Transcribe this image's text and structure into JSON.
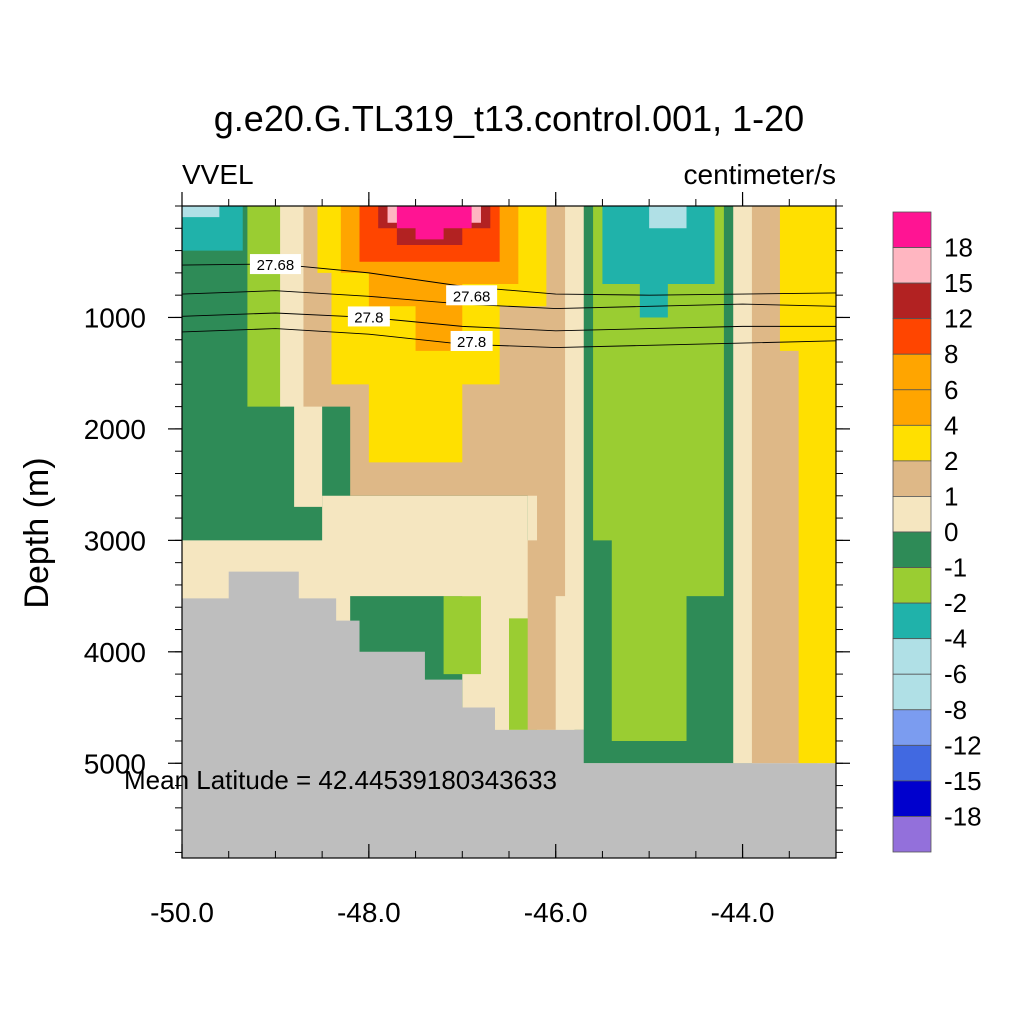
{
  "chart_data": {
    "type": "heatmap",
    "title": "g.e20.G.TL319_t13.control.001, 1-20",
    "left_label": "VVEL",
    "right_label": "centimeter/s",
    "ylabel": "Depth (m)",
    "xlabel": "",
    "xlim": [
      -50.0,
      -43.0
    ],
    "ylim": [
      5850,
      0
    ],
    "x_ticks": [
      -50.0,
      -48.0,
      -46.0,
      -44.0
    ],
    "x_tick_labels": [
      "-50.0",
      "-48.0",
      "-46.0",
      "-44.0"
    ],
    "y_ticks": [
      1000,
      2000,
      3000,
      4000,
      5000
    ],
    "y_tick_labels": [
      "1000",
      "2000",
      "3000",
      "4000",
      "5000"
    ],
    "annotation": "Mean Latitude = 42.44539180343633",
    "legend": {
      "position": "right",
      "labels": [
        "18",
        "15",
        "12",
        "8",
        "6",
        "4",
        "2",
        "1",
        "0",
        "-1",
        "-2",
        "-4",
        "-6",
        "-8",
        "-12",
        "-15",
        "-18"
      ],
      "colors": [
        "#FF1493",
        "#FFB6C1",
        "#B22222",
        "#FF4500",
        "#FFA500",
        "#FFA500",
        "#FFE000",
        "#DEB887",
        "#F5E6C0",
        "#2E8B57",
        "#9ACD32",
        "#20B2AA",
        "#B0E0E6",
        "#B0E0E6",
        "#7B9CF0",
        "#4169E1",
        "#0000CD",
        "#9370DB"
      ]
    },
    "contour_labels": [
      {
        "text": "27.68",
        "x": -49.0,
        "depth": 530
      },
      {
        "text": "27.68",
        "x": -46.9,
        "depth": 810
      },
      {
        "text": "27.8",
        "x": -48.0,
        "depth": 1000
      },
      {
        "text": "27.8",
        "x": -46.9,
        "depth": 1220
      }
    ],
    "contours": [
      [
        [
          -50,
          530
        ],
        [
          -49.0,
          520
        ],
        [
          -48.0,
          600
        ],
        [
          -47.0,
          720
        ],
        [
          -46.0,
          790
        ],
        [
          -45.0,
          800
        ],
        [
          -44.0,
          790
        ],
        [
          -43.0,
          780
        ]
      ],
      [
        [
          -50,
          790
        ],
        [
          -49.0,
          760
        ],
        [
          -48.0,
          810
        ],
        [
          -47.0,
          880
        ],
        [
          -46.0,
          920
        ],
        [
          -45.0,
          900
        ],
        [
          -44.0,
          880
        ],
        [
          -43.0,
          900
        ]
      ],
      [
        [
          -50,
          990
        ],
        [
          -49.0,
          960
        ],
        [
          -48.0,
          1000
        ],
        [
          -47.0,
          1080
        ],
        [
          -46.0,
          1120
        ],
        [
          -45.0,
          1100
        ],
        [
          -44.0,
          1080
        ],
        [
          -43.0,
          1080
        ]
      ],
      [
        [
          -50,
          1130
        ],
        [
          -49.0,
          1100
        ],
        [
          -48.0,
          1150
        ],
        [
          -47.0,
          1240
        ],
        [
          -46.0,
          1270
        ],
        [
          -45.0,
          1250
        ],
        [
          -44.0,
          1230
        ],
        [
          -43.0,
          1210
        ]
      ]
    ],
    "seafloor": [
      [
        -50.0,
        3520
      ],
      [
        -49.5,
        3520
      ],
      [
        -49.5,
        3280
      ],
      [
        -48.75,
        3280
      ],
      [
        -48.75,
        3520
      ],
      [
        -48.35,
        3520
      ],
      [
        -48.35,
        3720
      ],
      [
        -48.1,
        3720
      ],
      [
        -48.1,
        4000
      ],
      [
        -47.4,
        4000
      ],
      [
        -47.4,
        4250
      ],
      [
        -47.0,
        4250
      ],
      [
        -47.0,
        4500
      ],
      [
        -46.65,
        4500
      ],
      [
        -46.65,
        4700
      ],
      [
        -45.7,
        4700
      ],
      [
        -45.7,
        5000
      ],
      [
        -43.0,
        5000
      ]
    ],
    "regions": [
      {
        "value": 0,
        "poly": [
          [
            -50.0,
            3000
          ],
          [
            -43.0,
            3000
          ],
          [
            -43.0,
            5000
          ],
          [
            -50.0,
            5000
          ]
        ]
      },
      {
        "value": -1,
        "poly": [
          [
            -50.0,
            0
          ],
          [
            -43.0,
            0
          ],
          [
            -43.0,
            3000
          ],
          [
            -50.0,
            3000
          ]
        ]
      },
      {
        "value": -1,
        "poly": [
          [
            -48.2,
            3300
          ],
          [
            -47.0,
            3300
          ],
          [
            -47.0,
            4500
          ],
          [
            -48.2,
            4500
          ]
        ]
      },
      {
        "value": -1,
        "poly": [
          [
            -45.8,
            1500
          ],
          [
            -43.9,
            1500
          ],
          [
            -43.9,
            5000
          ],
          [
            -45.8,
            5000
          ]
        ]
      },
      {
        "value": -2,
        "poly": [
          [
            -49.3,
            0
          ],
          [
            -48.9,
            0
          ],
          [
            -48.9,
            1000
          ],
          [
            -49.3,
            1000
          ]
        ]
      },
      {
        "value": -2,
        "poly": [
          [
            -49.3,
            1000
          ],
          [
            -48.9,
            1000
          ],
          [
            -48.9,
            1800
          ],
          [
            -49.3,
            1800
          ]
        ]
      },
      {
        "value": -2,
        "poly": [
          [
            -45.6,
            0
          ],
          [
            -44.2,
            0
          ],
          [
            -44.2,
            3500
          ],
          [
            -44.6,
            3500
          ],
          [
            -44.6,
            4800
          ],
          [
            -45.4,
            4800
          ],
          [
            -45.4,
            3000
          ],
          [
            -45.6,
            3000
          ]
        ]
      },
      {
        "value": -2,
        "poly": [
          [
            -47.2,
            3500
          ],
          [
            -46.8,
            3500
          ],
          [
            -46.8,
            4200
          ],
          [
            -47.2,
            4200
          ]
        ]
      },
      {
        "value": -2,
        "poly": [
          [
            -46.5,
            3700
          ],
          [
            -46.2,
            3700
          ],
          [
            -46.2,
            4700
          ],
          [
            -46.5,
            4700
          ]
        ]
      },
      {
        "value": -4,
        "poly": [
          [
            -50.0,
            0
          ],
          [
            -49.35,
            0
          ],
          [
            -49.35,
            400
          ],
          [
            -50.0,
            400
          ]
        ]
      },
      {
        "value": -4,
        "poly": [
          [
            -45.5,
            0
          ],
          [
            -44.3,
            0
          ],
          [
            -44.3,
            700
          ],
          [
            -44.8,
            700
          ],
          [
            -44.8,
            1000
          ],
          [
            -45.1,
            1000
          ],
          [
            -45.1,
            700
          ],
          [
            -45.5,
            700
          ]
        ]
      },
      {
        "value": -6,
        "poly": [
          [
            -50.0,
            0
          ],
          [
            -49.6,
            0
          ],
          [
            -49.6,
            100
          ],
          [
            -50.0,
            100
          ]
        ]
      },
      {
        "value": -6,
        "poly": [
          [
            -45.0,
            0
          ],
          [
            -44.6,
            0
          ],
          [
            -44.6,
            200
          ],
          [
            -45.0,
            200
          ]
        ]
      },
      {
        "value": 0,
        "poly": [
          [
            -48.95,
            0
          ],
          [
            -48.5,
            0
          ],
          [
            -48.5,
            2700
          ],
          [
            -48.8,
            2700
          ],
          [
            -48.8,
            1800
          ],
          [
            -48.95,
            1800
          ]
        ]
      },
      {
        "value": 0,
        "poly": [
          [
            -46.3,
            0
          ],
          [
            -45.7,
            0
          ],
          [
            -45.7,
            4700
          ],
          [
            -46.0,
            4700
          ],
          [
            -46.0,
            3500
          ],
          [
            -46.3,
            3500
          ]
        ]
      },
      {
        "value": 0,
        "poly": [
          [
            -44.1,
            0
          ],
          [
            -43.5,
            0
          ],
          [
            -43.5,
            5000
          ],
          [
            -44.1,
            5000
          ]
        ]
      },
      {
        "value": 0,
        "poly": [
          [
            -48.5,
            2600
          ],
          [
            -46.3,
            2600
          ],
          [
            -46.3,
            3500
          ],
          [
            -48.5,
            3500
          ]
        ]
      },
      {
        "value": 1,
        "poly": [
          [
            -48.7,
            0
          ],
          [
            -45.9,
            0
          ],
          [
            -45.9,
            3500
          ],
          [
            -46.2,
            3500
          ],
          [
            -46.2,
            2600
          ],
          [
            -48.2,
            2600
          ],
          [
            -48.2,
            1800
          ],
          [
            -48.7,
            1800
          ]
        ]
      },
      {
        "value": 1,
        "poly": [
          [
            -43.9,
            0
          ],
          [
            -43.2,
            0
          ],
          [
            -43.2,
            5000
          ],
          [
            -43.9,
            5000
          ]
        ]
      },
      {
        "value": 1,
        "poly": [
          [
            -46.3,
            3000
          ],
          [
            -46.0,
            3000
          ],
          [
            -46.0,
            4700
          ],
          [
            -46.3,
            4700
          ]
        ]
      },
      {
        "value": 2,
        "poly": [
          [
            -48.55,
            0
          ],
          [
            -46.1,
            0
          ],
          [
            -46.1,
            900
          ],
          [
            -46.6,
            900
          ],
          [
            -46.6,
            1600
          ],
          [
            -47.0,
            1600
          ],
          [
            -47.0,
            2300
          ],
          [
            -48.0,
            2300
          ],
          [
            -48.0,
            1600
          ],
          [
            -48.4,
            1600
          ],
          [
            -48.4,
            600
          ],
          [
            -48.55,
            600
          ]
        ]
      },
      {
        "value": 2,
        "poly": [
          [
            -43.6,
            0
          ],
          [
            -43.0,
            0
          ],
          [
            -43.0,
            5000
          ],
          [
            -43.4,
            5000
          ],
          [
            -43.4,
            1300
          ],
          [
            -43.6,
            1300
          ]
        ]
      },
      {
        "value": 4,
        "poly": [
          [
            -48.3,
            0
          ],
          [
            -46.4,
            0
          ],
          [
            -46.4,
            700
          ],
          [
            -47.0,
            700
          ],
          [
            -47.0,
            1300
          ],
          [
            -47.5,
            1300
          ],
          [
            -47.5,
            900
          ],
          [
            -48.0,
            900
          ],
          [
            -48.0,
            600
          ],
          [
            -48.3,
            600
          ]
        ]
      },
      {
        "value": 8,
        "poly": [
          [
            -48.1,
            0
          ],
          [
            -46.6,
            0
          ],
          [
            -46.6,
            500
          ],
          [
            -48.1,
            500
          ]
        ]
      },
      {
        "value": 12,
        "poly": [
          [
            -47.9,
            0
          ],
          [
            -46.7,
            0
          ],
          [
            -46.7,
            200
          ],
          [
            -47.0,
            200
          ],
          [
            -47.0,
            350
          ],
          [
            -47.7,
            350
          ],
          [
            -47.7,
            200
          ],
          [
            -47.9,
            200
          ]
        ]
      },
      {
        "value": 15,
        "poly": [
          [
            -47.8,
            0
          ],
          [
            -46.8,
            0
          ],
          [
            -46.8,
            150
          ],
          [
            -47.8,
            150
          ]
        ]
      },
      {
        "value": 18,
        "poly": [
          [
            -47.7,
            0
          ],
          [
            -46.9,
            0
          ],
          [
            -46.9,
            200
          ],
          [
            -47.2,
            200
          ],
          [
            -47.2,
            300
          ],
          [
            -47.5,
            300
          ],
          [
            -47.5,
            200
          ],
          [
            -47.7,
            200
          ]
        ]
      }
    ]
  }
}
